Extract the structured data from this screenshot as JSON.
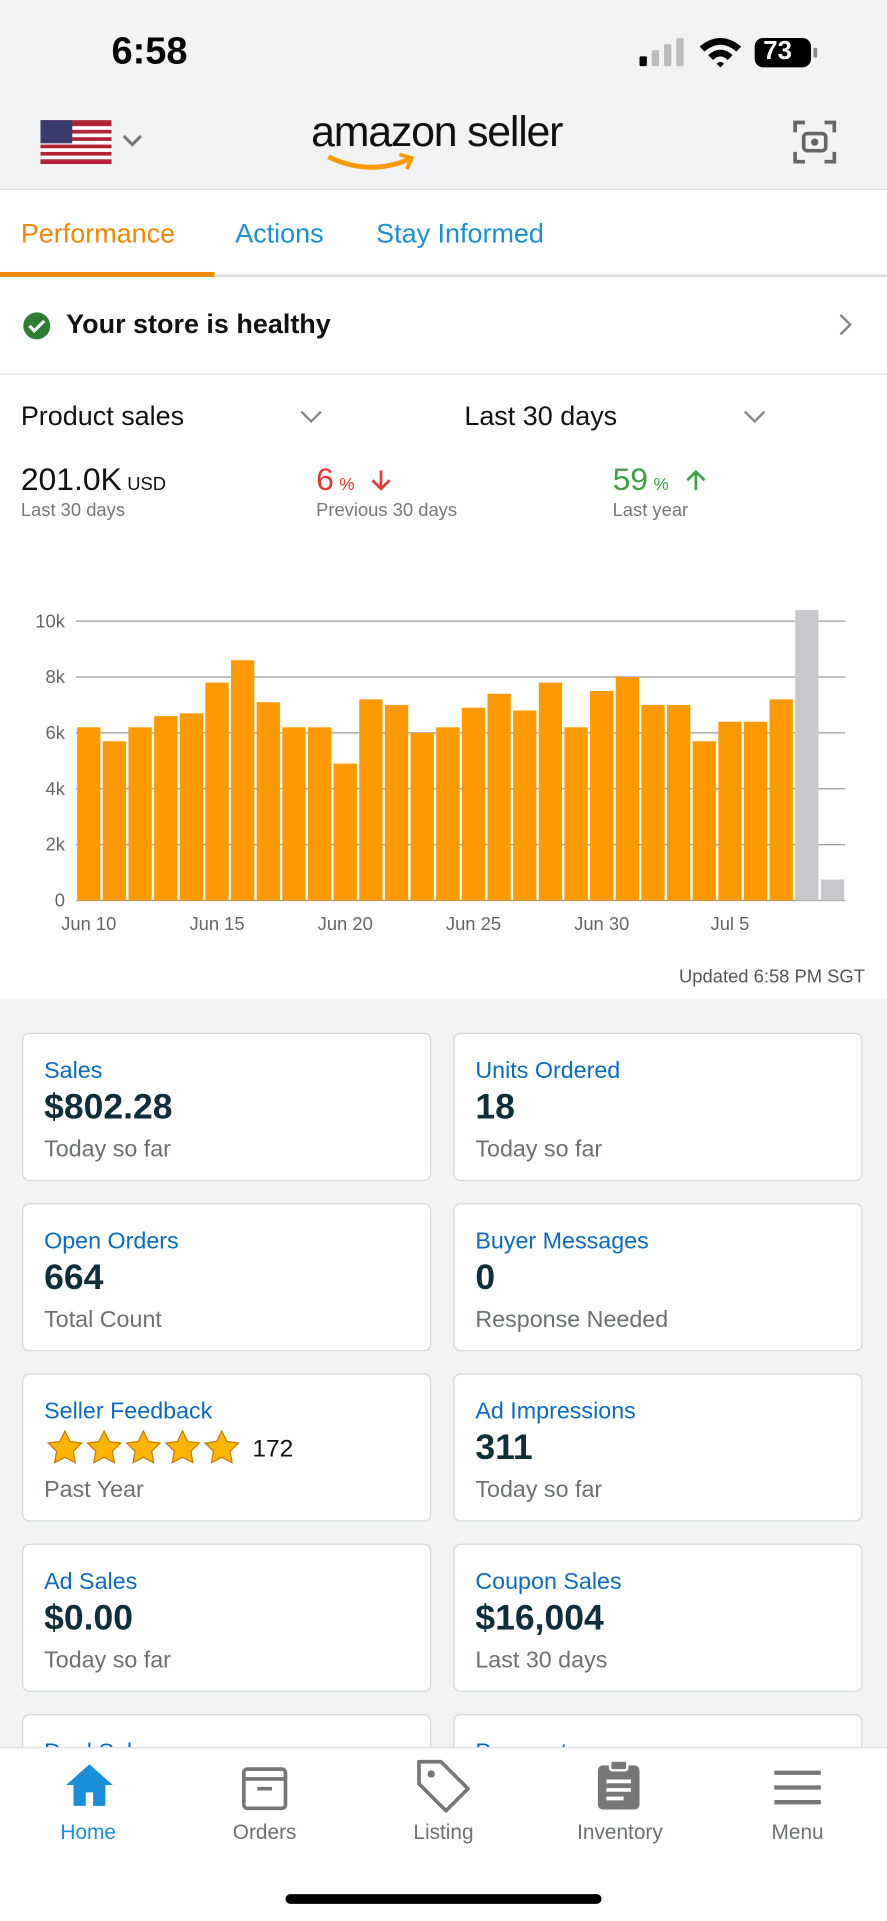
{
  "status_bar": {
    "time": "6:58",
    "battery": "73"
  },
  "header": {
    "logo": "amazon seller"
  },
  "tabs": [
    "Performance",
    "Actions",
    "Stay Informed"
  ],
  "health": {
    "text": "Your store is healthy"
  },
  "filters": {
    "metric": "Product sales",
    "period": "Last 30 days"
  },
  "summary": [
    {
      "value": "201.0K",
      "unit": "USD",
      "caption": "Last 30 days"
    },
    {
      "value": "6",
      "unit": "%",
      "caption": "Previous 30 days"
    },
    {
      "value": "59",
      "unit": "%",
      "caption": "Last year"
    }
  ],
  "chart_data": {
    "type": "bar",
    "categories": [
      "Jun 10",
      null,
      null,
      null,
      null,
      "Jun 15",
      null,
      null,
      null,
      null,
      "Jun 20",
      null,
      null,
      null,
      null,
      "Jun 25",
      null,
      null,
      null,
      null,
      "Jun 30",
      null,
      null,
      null,
      null,
      "Jul 5",
      null,
      null,
      null,
      null
    ],
    "values": [
      6200,
      5700,
      6200,
      6600,
      6700,
      7800,
      8600,
      7100,
      6200,
      6200,
      4900,
      7200,
      7000,
      6000,
      6200,
      6900,
      7400,
      6800,
      7800,
      6200,
      7500,
      8000,
      7000,
      7000,
      5700,
      6400,
      6400,
      7200,
      10400,
      750
    ],
    "colors": [
      "#ff9900",
      "#ff9900",
      "#ff9900",
      "#ff9900",
      "#ff9900",
      "#ff9900",
      "#ff9900",
      "#ff9900",
      "#ff9900",
      "#ff9900",
      "#ff9900",
      "#ff9900",
      "#ff9900",
      "#ff9900",
      "#ff9900",
      "#ff9900",
      "#ff9900",
      "#ff9900",
      "#ff9900",
      "#ff9900",
      "#ff9900",
      "#ff9900",
      "#ff9900",
      "#ff9900",
      "#ff9900",
      "#ff9900",
      "#ff9900",
      "#ff9900",
      "#c7c7cc",
      "#c7c7cc"
    ],
    "ylim": [
      0,
      10500
    ],
    "yticks": [
      0,
      {
        "value": 2000,
        "label": "2k"
      },
      {
        "value": 4000,
        "label": "4k"
      },
      {
        "value": 6000,
        "label": "6k"
      },
      {
        "value": 8000,
        "label": "8k"
      },
      {
        "value": 10000,
        "label": "10k"
      }
    ],
    "grid": true
  },
  "updated": "Updated 6:58 PM SGT",
  "tiles": [
    {
      "title": "Sales",
      "value": "$802.28",
      "sub": "Today so far"
    },
    {
      "title": "Units Ordered",
      "value": "18",
      "sub": "Today so far"
    },
    {
      "title": "Open Orders",
      "value": "664",
      "sub": "Total Count"
    },
    {
      "title": "Buyer Messages",
      "value": "0",
      "sub": "Response Needed"
    },
    {
      "title": "Seller Feedback",
      "value": "172",
      "sub": "Past Year"
    },
    {
      "title": "Ad Impressions",
      "value": "311",
      "sub": "Today so far"
    },
    {
      "title": "Ad Sales",
      "value": "$0.00",
      "sub": "Today so far"
    },
    {
      "title": "Coupon Sales",
      "value": "$16,004",
      "sub": "Last 30 days"
    },
    {
      "title": "Deal Sales"
    },
    {
      "title": "Payments"
    }
  ],
  "nav": [
    "Home",
    "Orders",
    "Listing",
    "Inventory",
    "Menu"
  ]
}
